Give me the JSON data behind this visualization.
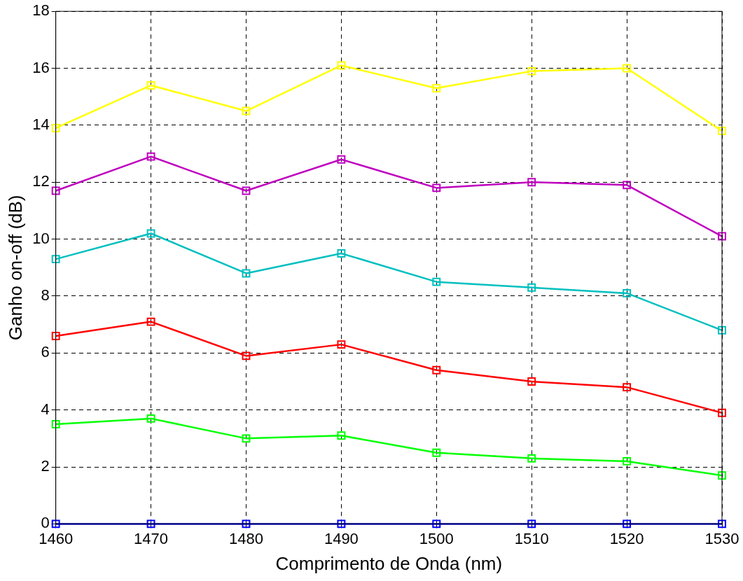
{
  "chart_data": {
    "type": "line",
    "xlabel": "Comprimento de Onda (nm)",
    "ylabel": "Ganho on-off (dB)",
    "x": [
      1460,
      1470,
      1480,
      1490,
      1500,
      1510,
      1520,
      1530
    ],
    "xlim": [
      1460,
      1530
    ],
    "xticks": [
      1460,
      1470,
      1480,
      1490,
      1500,
      1510,
      1520,
      1530
    ],
    "ylim": [
      0,
      18
    ],
    "yticks": [
      0,
      2,
      4,
      6,
      8,
      10,
      12,
      14,
      16,
      18
    ],
    "grid": true,
    "legend": false,
    "marker": "square",
    "line_style": "solid",
    "series": [
      {
        "color": "#ffff00",
        "values": [
          13.9,
          15.4,
          14.5,
          16.1,
          15.3,
          15.9,
          16.0,
          13.8
        ]
      },
      {
        "color": "#bf00bf",
        "values": [
          11.7,
          12.9,
          11.7,
          12.8,
          11.8,
          12.0,
          11.9,
          10.1
        ]
      },
      {
        "color": "#00bfbf",
        "values": [
          9.3,
          10.2,
          8.8,
          9.5,
          8.5,
          8.3,
          8.1,
          6.8
        ]
      },
      {
        "color": "#ff0000",
        "values": [
          6.6,
          7.1,
          5.9,
          6.3,
          5.4,
          5.0,
          4.8,
          3.9
        ]
      },
      {
        "color": "#00ff00",
        "values": [
          3.5,
          3.7,
          3.0,
          3.1,
          2.5,
          2.3,
          2.2,
          1.7
        ]
      },
      {
        "color": "#0000ff",
        "values": [
          0,
          0,
          0,
          0,
          0,
          0,
          0,
          0
        ]
      }
    ]
  }
}
